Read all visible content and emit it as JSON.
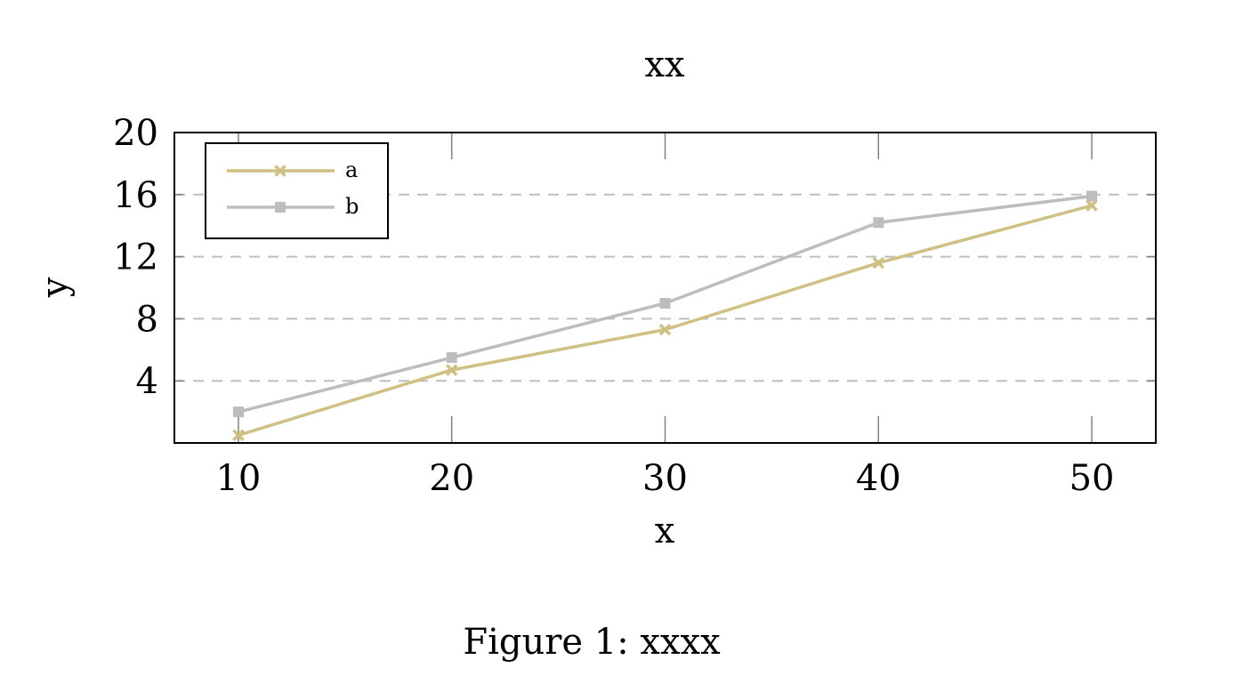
{
  "caption": "Figure 1: xxxx",
  "chart_data": {
    "type": "line",
    "title": "xx",
    "xlabel": "x",
    "ylabel": "y",
    "x": [
      10,
      20,
      30,
      40,
      50
    ],
    "xlim": [
      7,
      53
    ],
    "ylim": [
      0,
      20
    ],
    "xticks": [
      10,
      20,
      30,
      40,
      50
    ],
    "yticks": [
      4,
      8,
      12,
      16,
      20
    ],
    "grid": "horizontal dashed",
    "legend_position": "top-left",
    "series": [
      {
        "name": "a",
        "values": [
          0.5,
          4.7,
          7.3,
          11.6,
          15.3
        ],
        "color": "#cfc083",
        "marker": "x"
      },
      {
        "name": "b",
        "values": [
          2.0,
          5.5,
          9.0,
          14.2,
          15.9
        ],
        "color": "#bdbdbd",
        "marker": "square"
      }
    ]
  }
}
